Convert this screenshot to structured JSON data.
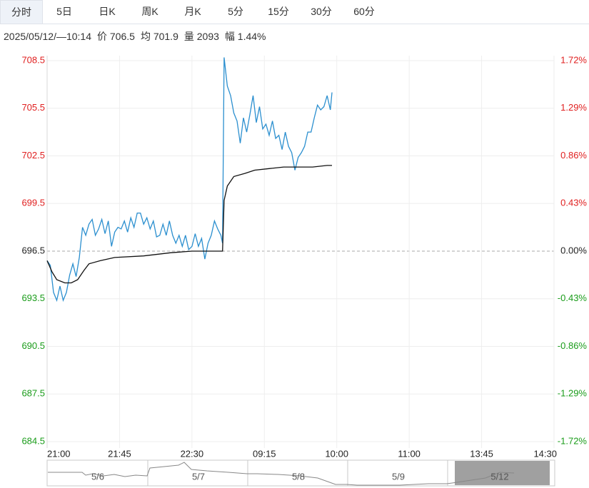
{
  "tabs": [
    "分时",
    "5日",
    "日K",
    "周K",
    "月K",
    "5分",
    "15分",
    "30分",
    "60分"
  ],
  "info": [
    "2025/05/12/—10:14",
    "价 706.5",
    "均 701.9",
    "量 2093",
    "幅 1.44%"
  ],
  "chart_data": {
    "type": "line",
    "xlim": [
      0,
      315
    ],
    "xticks": [
      {
        "value": 0,
        "label": "21:00"
      },
      {
        "value": 45,
        "label": "21:45"
      },
      {
        "value": 90,
        "label": "22:30"
      },
      {
        "value": 135,
        "label": "09:15"
      },
      {
        "value": 180,
        "label": "10:00"
      },
      {
        "value": 225,
        "label": "11:00"
      },
      {
        "value": 270,
        "label": "13:45"
      },
      {
        "value": 315,
        "label": "14:30"
      }
    ],
    "ylim": [
      684.5,
      708.5
    ],
    "yticks": [
      708.5,
      705.5,
      702.5,
      699.5,
      696.5,
      693.5,
      690.5,
      687.5,
      684.5
    ],
    "y2lim": [
      -1.72,
      1.72
    ],
    "y2ticks": [
      {
        "value": 1.72,
        "label": "1.72%"
      },
      {
        "value": 1.29,
        "label": "1.29%"
      },
      {
        "value": 0.86,
        "label": "0.86%"
      },
      {
        "value": 0.43,
        "label": "0.43%"
      },
      {
        "value": 0,
        "label": "0.00%"
      },
      {
        "value": -0.43,
        "label": "-0.43%"
      },
      {
        "value": -0.86,
        "label": "-0.86%"
      },
      {
        "value": -1.29,
        "label": "-1.29%"
      },
      {
        "value": -1.72,
        "label": "-1.72%"
      }
    ],
    "reference_line": 696.5,
    "grid": true,
    "up_color": "#e02020",
    "down_color": "#1a9c1a",
    "series": [
      {
        "color": "#2b8fcf",
        "x": [
          0,
          2,
          4,
          6,
          8,
          10,
          12,
          14,
          16,
          18,
          20,
          22,
          24,
          26,
          28,
          30,
          32,
          34,
          36,
          38,
          40,
          42,
          44,
          46,
          48,
          50,
          52,
          54,
          56,
          58,
          60,
          62,
          64,
          66,
          68,
          70,
          72,
          74,
          76,
          78,
          80,
          82,
          84,
          86,
          88,
          90,
          92,
          94,
          96,
          98,
          100,
          102,
          104,
          106,
          108,
          109,
          110,
          112,
          114,
          116,
          118,
          120,
          122,
          124,
          126,
          128,
          130,
          132,
          134,
          136,
          138,
          140,
          142,
          144,
          146,
          148,
          150,
          152,
          154,
          156,
          158,
          160,
          162,
          164,
          166,
          168,
          170,
          172,
          174,
          176,
          177
        ],
        "values": [
          695.9,
          695.6,
          693.9,
          693.4,
          694.3,
          693.4,
          693.9,
          695.0,
          695.7,
          694.9,
          696.1,
          698.0,
          697.5,
          698.2,
          698.5,
          697.5,
          697.9,
          698.5,
          697.6,
          698.4,
          696.8,
          697.7,
          698.0,
          697.9,
          698.4,
          697.7,
          698.6,
          698.0,
          698.9,
          698.9,
          698.2,
          698.6,
          697.9,
          698.4,
          697.4,
          697.5,
          698.2,
          697.5,
          698.4,
          697.5,
          697.0,
          697.5,
          696.8,
          697.5,
          696.6,
          696.8,
          697.6,
          696.8,
          697.3,
          696.0,
          697.0,
          697.5,
          698.4,
          697.9,
          697.5,
          697.0,
          708.7,
          706.9,
          706.3,
          705.2,
          704.7,
          703.3,
          704.9,
          704.0,
          705.1,
          706.3,
          704.6,
          705.6,
          704.2,
          704.5,
          703.8,
          704.7,
          703.6,
          703.8,
          702.9,
          704.0,
          703.1,
          702.7,
          701.6,
          702.4,
          702.7,
          703.1,
          704.0,
          704.0,
          704.9,
          705.7,
          705.4,
          705.6,
          706.3,
          705.4,
          706.5
        ]
      },
      {
        "color": "#111111",
        "x": [
          0,
          3,
          6,
          11,
          15,
          19,
          23,
          26,
          33,
          42,
          60,
          77,
          90,
          104,
          109,
          110,
          112,
          116,
          123,
          129,
          138,
          147,
          156,
          165,
          174,
          177
        ],
        "values": [
          695.9,
          695.2,
          694.7,
          694.5,
          694.5,
          694.7,
          695.3,
          695.7,
          695.9,
          696.1,
          696.2,
          696.4,
          696.5,
          696.5,
          696.5,
          699.7,
          700.6,
          701.2,
          701.4,
          701.6,
          701.7,
          701.8,
          701.8,
          701.8,
          701.9,
          701.9
        ]
      }
    ]
  },
  "navigator": {
    "dates": [
      "5/6",
      "5/7",
      "5/8",
      "5/9",
      "5/12"
    ]
  }
}
